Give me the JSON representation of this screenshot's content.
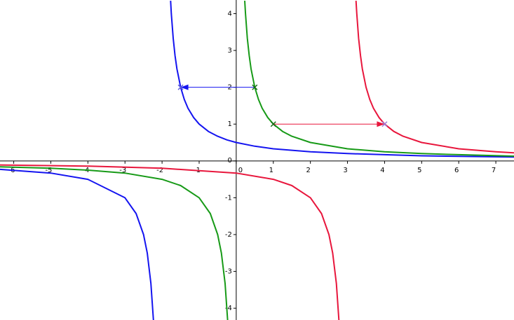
{
  "chart_data": {
    "type": "function-plot",
    "xlim": [
      -6.37,
      7.49
    ],
    "ylim": [
      -4.32,
      4.37
    ],
    "xticks": [
      -6,
      -5,
      -4,
      -3,
      -2,
      -1,
      0,
      1,
      2,
      3,
      4,
      5,
      6,
      7
    ],
    "yticks": [
      -4,
      -3,
      -2,
      -1,
      0,
      1,
      2,
      3,
      4
    ],
    "series": [
      {
        "color": "#1414f0",
        "x": [
          -6.37,
          -5,
          -4,
          -3,
          -2.7,
          -2.5,
          -2.4,
          -2.3,
          -2.23,
          null,
          -1.77,
          -1.75,
          -1.7,
          -1.65,
          -1.6,
          -1.5,
          -1.4,
          -1.3,
          -1.15,
          -1,
          -0.75,
          -0.5,
          -0.25,
          0,
          0.5,
          1,
          2,
          3,
          4,
          5,
          6,
          7.49
        ],
        "values": [
          -0.23,
          -0.33,
          -0.5,
          -1,
          -1.43,
          -2,
          -2.5,
          -3.33,
          -4.35,
          null,
          4.35,
          4,
          3.33,
          2.86,
          2.5,
          2,
          1.67,
          1.43,
          1.18,
          1,
          0.8,
          0.67,
          0.57,
          0.5,
          0.4,
          0.33,
          0.25,
          0.2,
          0.17,
          0.14,
          0.125,
          0.105
        ]
      },
      {
        "color": "#179a17",
        "x": [
          -6.37,
          -5,
          -4,
          -3,
          -2,
          -1.5,
          -1,
          -0.7,
          -0.5,
          -0.4,
          -0.3,
          -0.23,
          null,
          0.23,
          0.25,
          0.3,
          0.35,
          0.4,
          0.5,
          0.6,
          0.7,
          0.85,
          1,
          1.25,
          1.5,
          2,
          3,
          4,
          5,
          6,
          7.49
        ],
        "values": [
          -0.16,
          -0.2,
          -0.25,
          -0.33,
          -0.5,
          -0.67,
          -1,
          -1.43,
          -2,
          -2.5,
          -3.33,
          -4.35,
          null,
          4.35,
          4,
          3.33,
          2.86,
          2.5,
          2,
          1.67,
          1.43,
          1.18,
          1,
          0.8,
          0.67,
          0.5,
          0.33,
          0.25,
          0.2,
          0.17,
          0.13
        ]
      },
      {
        "color": "#e8163c",
        "x": [
          -6.37,
          -4,
          -2,
          0,
          1,
          1.5,
          2,
          2.3,
          2.5,
          2.6,
          2.7,
          2.77,
          null,
          3.23,
          3.25,
          3.3,
          3.35,
          3.4,
          3.5,
          3.6,
          3.7,
          3.85,
          4,
          4.25,
          4.5,
          5,
          6,
          7,
          7.49
        ],
        "values": [
          -0.11,
          -0.14,
          -0.2,
          -0.33,
          -0.5,
          -0.67,
          -1,
          -1.43,
          -2,
          -2.5,
          -3.33,
          -4.35,
          null,
          4.35,
          4,
          3.33,
          2.86,
          2.5,
          2,
          1.67,
          1.43,
          1.18,
          1,
          0.8,
          0.67,
          0.5,
          0.33,
          0.25,
          0.22
        ]
      }
    ],
    "points": [
      {
        "x": -1.5,
        "y": 2,
        "color": "#5a5adc"
      },
      {
        "x": 0.5,
        "y": 2,
        "color": "#146e14"
      },
      {
        "x": 1,
        "y": 1,
        "color": "#146e14"
      },
      {
        "x": 4,
        "y": 1,
        "color": "#9a7ad8"
      }
    ],
    "arrows": [
      {
        "from": [
          0.5,
          2
        ],
        "to": [
          -1.5,
          2
        ],
        "color": "#1414f0"
      },
      {
        "from": [
          1,
          1
        ],
        "to": [
          4,
          1
        ],
        "color": "#e8163c"
      }
    ]
  }
}
